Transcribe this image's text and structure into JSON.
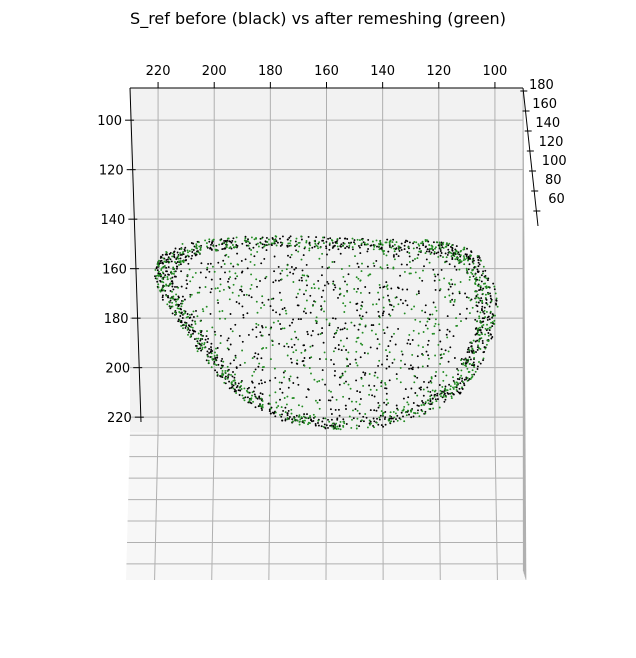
{
  "chart_data": {
    "type": "scatter",
    "projection": "3d",
    "title": "S_ref before (black) vs after remeshing (green)",
    "xlabel": "",
    "ylabel": "",
    "zlabel": "",
    "xlim": [
      90,
      230
    ],
    "ylim": [
      87,
      226
    ],
    "zlim": [
      45,
      183
    ],
    "axis_ticks": {
      "x": {
        "values": [
          220,
          200,
          180,
          160,
          140,
          120,
          100
        ],
        "labels": [
          "220",
          "200",
          "180",
          "160",
          "140",
          "120",
          "100"
        ]
      },
      "y": {
        "values": [
          100,
          120,
          140,
          160,
          180,
          200,
          220
        ],
        "labels": [
          "100",
          "120",
          "140",
          "160",
          "180",
          "200",
          "220"
        ]
      },
      "z": {
        "values": [
          180,
          160,
          140,
          120,
          100,
          80,
          60
        ],
        "labels": [
          "180",
          "160",
          "140",
          "120",
          "100",
          "80",
          "60"
        ]
      }
    },
    "grid": true,
    "legend": "none",
    "series": [
      {
        "color": "#000000",
        "marker": "point",
        "point_count": 1400,
        "shape": "closed surface, outline seen from above",
        "x_range": [
          93,
          225
        ],
        "y_range": [
          142,
          228
        ],
        "z_range": [
          60,
          180
        ]
      },
      {
        "color": "#228b22",
        "marker": "point",
        "point_count": 1100,
        "shape": "closed surface, outline seen from above",
        "x_range": [
          93,
          225
        ],
        "y_range": [
          142,
          228
        ],
        "z_range": [
          60,
          180
        ]
      }
    ]
  },
  "colors": {
    "pane_back": "#f2f2f2",
    "pane_floor": "#f7f7f7",
    "grid": "#b0b0b0",
    "black_points": "#000000",
    "green_points": "#228b22"
  }
}
